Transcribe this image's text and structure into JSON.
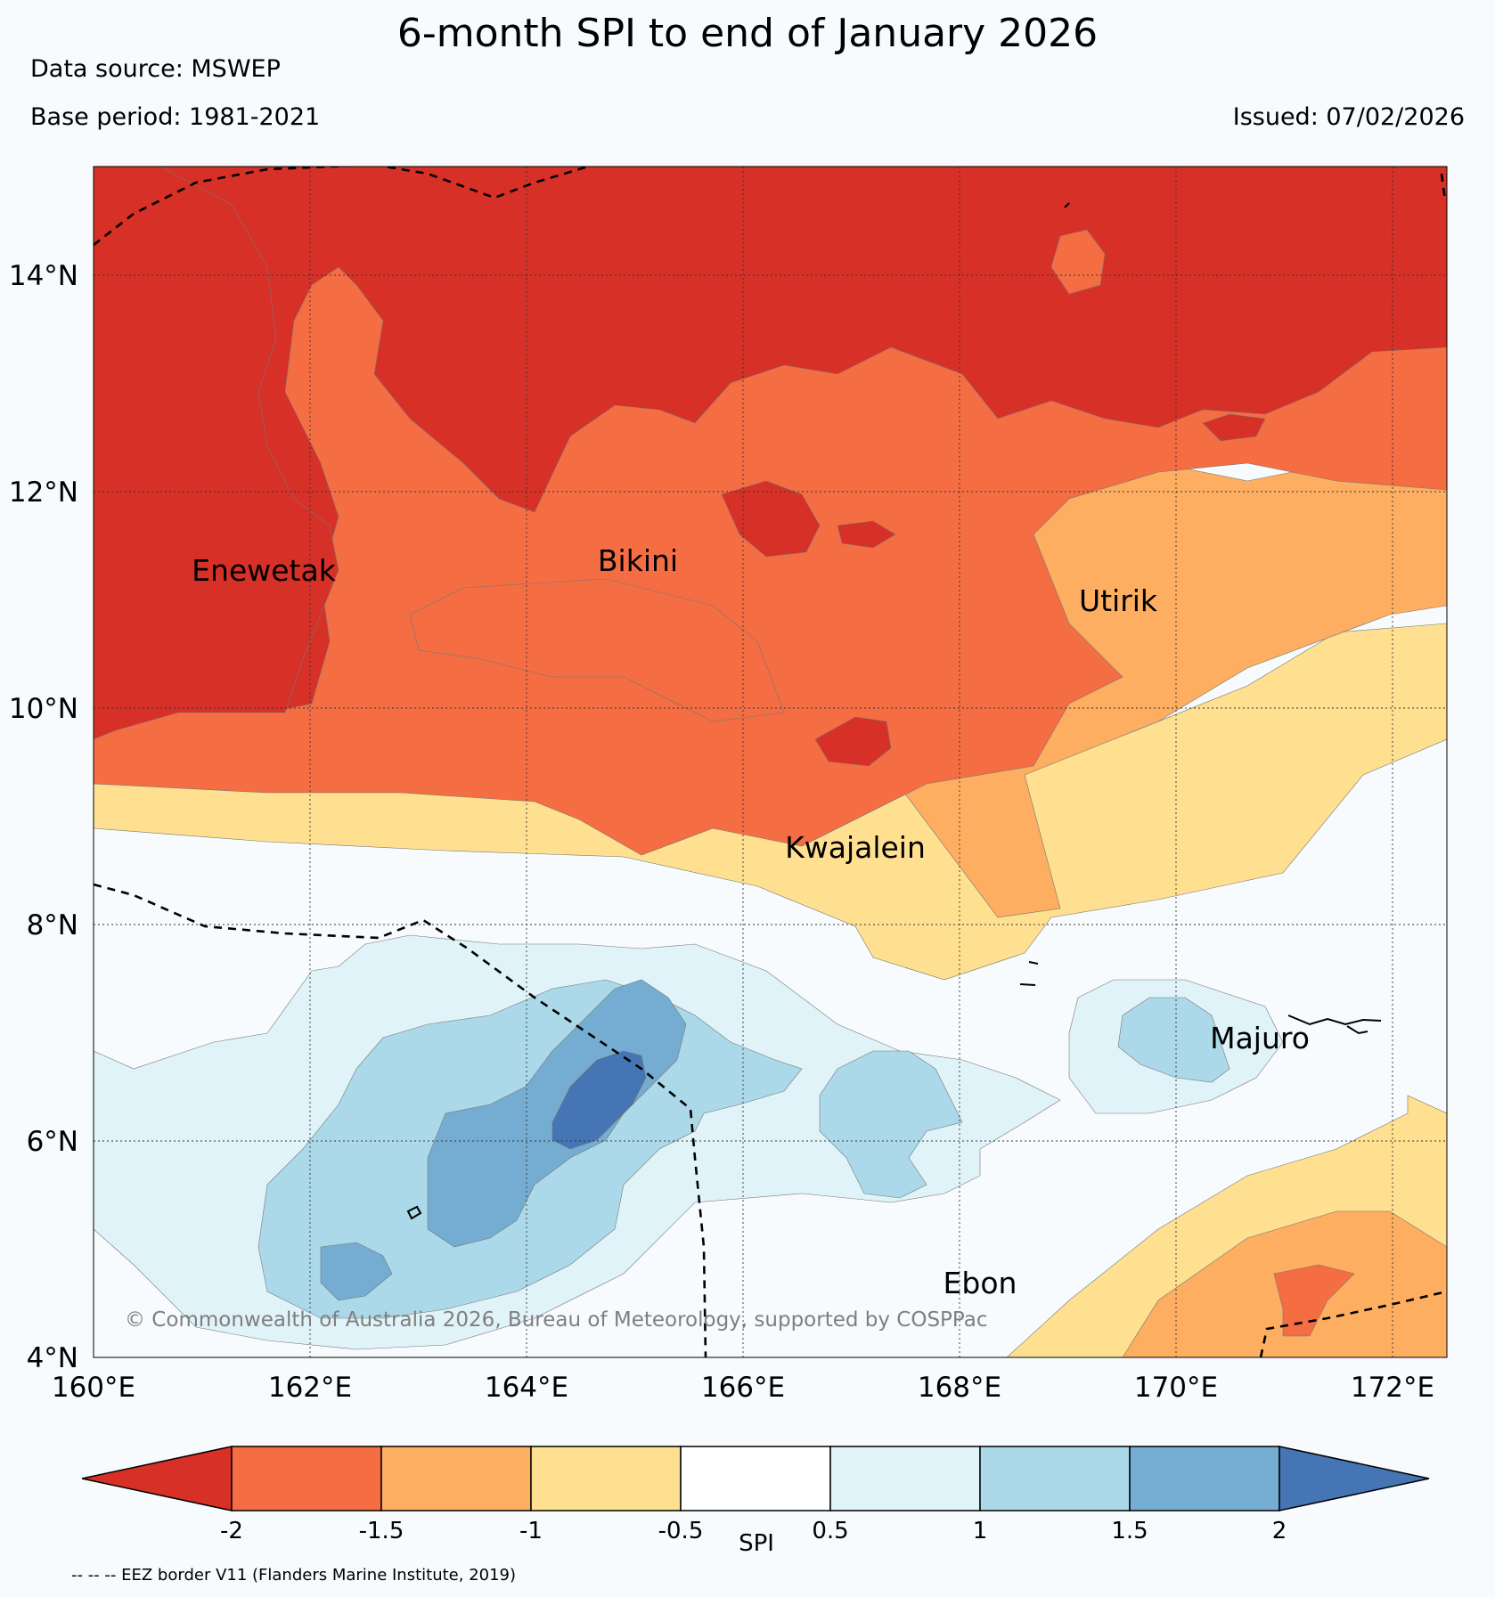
{
  "header": {
    "title": "6-month SPI to end of January 2026",
    "data_source": "Data source: MSWEP",
    "base_period": "Base period: 1981-2021",
    "issued": "Issued: 07/02/2026"
  },
  "map": {
    "lat_labels": [
      "14°N",
      "12°N",
      "10°N",
      "8°N",
      "6°N",
      "4°N"
    ],
    "lon_labels": [
      "160°E",
      "162°E",
      "164°E",
      "166°E",
      "168°E",
      "170°E",
      "172°E"
    ],
    "places": {
      "enewetak": "Enewetak",
      "bikini": "Bikini",
      "utirik": "Utirik",
      "kwajalein": "Kwajalein",
      "majuro": "Majuro",
      "ebon": "Ebon"
    },
    "copyright": "© Commonwealth of Australia 2026, Bureau of Meteorology, supported by COSPPac"
  },
  "colorbar": {
    "title": "SPI",
    "ticks": [
      "-2",
      "-1.5",
      "-1",
      "-0.5",
      "0.5",
      "1",
      "1.5",
      "2"
    ],
    "colors": {
      "lt_-2": "#d73027",
      "-2_-1.5": "#f46d43",
      "-1.5_-1": "#fdae61",
      "-1_-0.5": "#fee090",
      "-0.5_0.5": "#ffffff",
      "0.5_1": "#e0f3f8",
      "1_1.5": "#abd9e9",
      "1.5_2": "#74add1",
      "gt_2": "#4575b4"
    }
  },
  "footer": {
    "eez_note": "-- -- -- EEZ border V11 (Flanders Marine Institute, 2019)"
  }
}
